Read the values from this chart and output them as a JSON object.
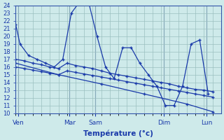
{
  "xlabel": "Température (°c)",
  "bg_color": "#ceeaea",
  "grid_color": "#9bbfbf",
  "line_color": "#1a3aaa",
  "ylim": [
    10,
    24
  ],
  "yticks": [
    10,
    11,
    12,
    13,
    14,
    15,
    16,
    17,
    18,
    19,
    20,
    21,
    22,
    23,
    24
  ],
  "xlim": [
    0,
    24
  ],
  "day_labels": [
    "Ven",
    "Mar",
    "Sam",
    "Dim",
    "Lun"
  ],
  "day_positions": [
    0.3,
    6.3,
    9.3,
    17.3,
    22.3
  ],
  "line1_x": [
    0,
    0.5,
    1.5,
    2.5,
    3.5,
    4.5,
    5.5,
    6.5,
    7.5,
    8.5,
    9.5,
    10.5,
    11.5,
    12.5,
    13.5,
    14.5,
    15.5,
    16.5,
    17.5,
    18.5,
    19.5,
    20.5,
    21.5,
    22.5
  ],
  "line1_y": [
    21.5,
    19.0,
    17.5,
    17.0,
    16.5,
    16.0,
    17.0,
    23.0,
    24.5,
    24.5,
    20.0,
    16.0,
    14.5,
    18.5,
    18.5,
    16.5,
    15.0,
    13.5,
    11.0,
    11.0,
    13.5,
    19.0,
    19.5,
    12.5
  ],
  "line2_x": [
    0,
    1,
    2,
    3,
    4,
    5,
    6,
    7,
    8,
    9,
    10,
    11,
    12,
    13,
    14,
    15,
    16,
    17,
    18,
    19,
    20,
    21,
    22,
    23
  ],
  "line2_y": [
    17.0,
    16.8,
    16.5,
    16.3,
    16.0,
    15.8,
    16.5,
    16.2,
    16.0,
    15.8,
    15.5,
    15.2,
    15.0,
    14.8,
    14.6,
    14.4,
    14.2,
    14.0,
    13.8,
    13.5,
    13.3,
    13.1,
    13.0,
    12.8
  ],
  "line3_x": [
    0,
    1,
    2,
    3,
    4,
    5,
    6,
    7,
    8,
    9,
    10,
    11,
    12,
    13,
    14,
    15,
    16,
    17,
    18,
    19,
    20,
    21,
    22,
    23
  ],
  "line3_y": [
    16.0,
    15.8,
    15.6,
    15.4,
    15.2,
    15.0,
    15.5,
    15.3,
    15.1,
    14.9,
    14.7,
    14.5,
    14.3,
    14.1,
    13.9,
    13.7,
    13.5,
    13.3,
    13.1,
    12.9,
    12.7,
    12.5,
    12.3,
    12.1
  ],
  "line4_x": [
    0,
    5,
    10,
    15,
    20,
    23
  ],
  "line4_y": [
    16.5,
    15.0,
    13.8,
    12.5,
    11.2,
    10.2
  ]
}
